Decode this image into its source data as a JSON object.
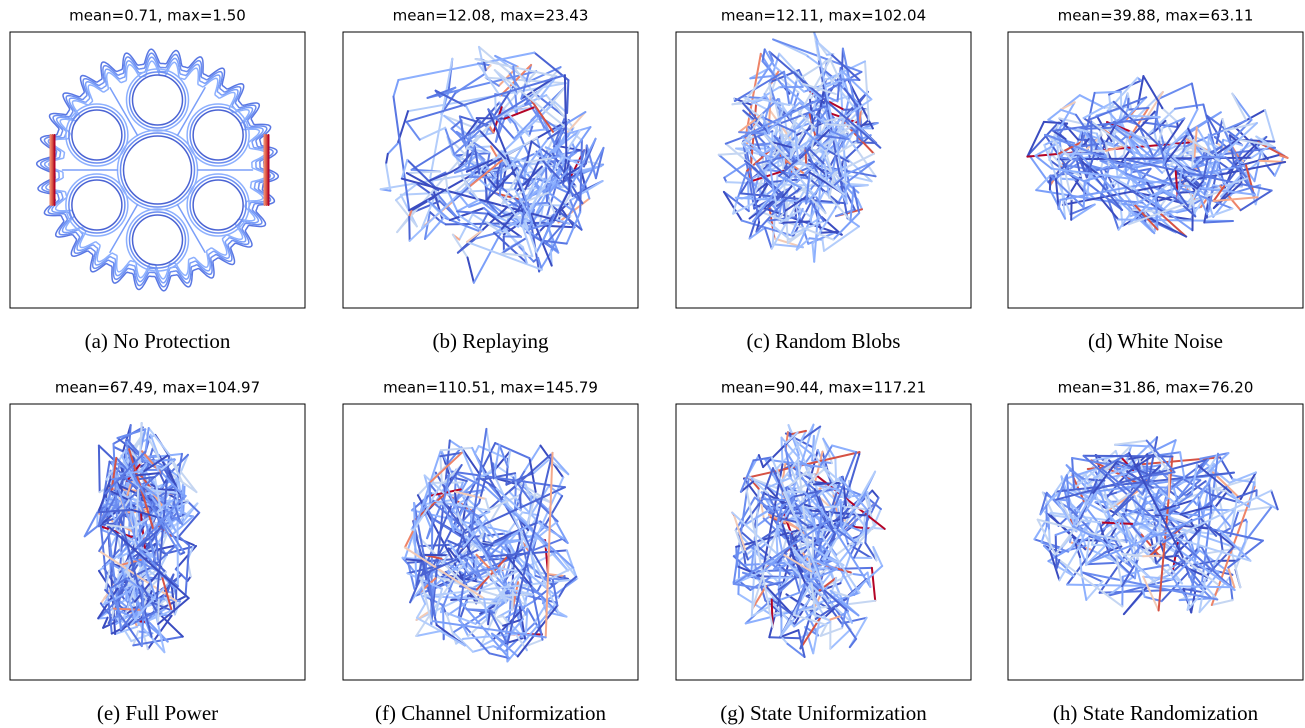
{
  "panels": [
    {
      "title": "mean=0.71, max=1.50",
      "caption": "(a) No Protection"
    },
    {
      "title": "mean=12.08, max=23.43",
      "caption": "(b) Replaying"
    },
    {
      "title": "mean=12.11, max=102.04",
      "caption": "(c) Random Blobs"
    },
    {
      "title": "mean=39.88, max=63.11",
      "caption": "(d) White Noise"
    },
    {
      "title": "mean=67.49, max=104.97",
      "caption": "(e) Full Power"
    },
    {
      "title": "mean=110.51, max=145.79",
      "caption": "(f) Channel Uniformization"
    },
    {
      "title": "mean=90.44, max=117.21",
      "caption": "(g) State Uniformization"
    },
    {
      "title": "mean=31.86, max=76.20",
      "caption": "(h) State Randomization"
    }
  ]
}
